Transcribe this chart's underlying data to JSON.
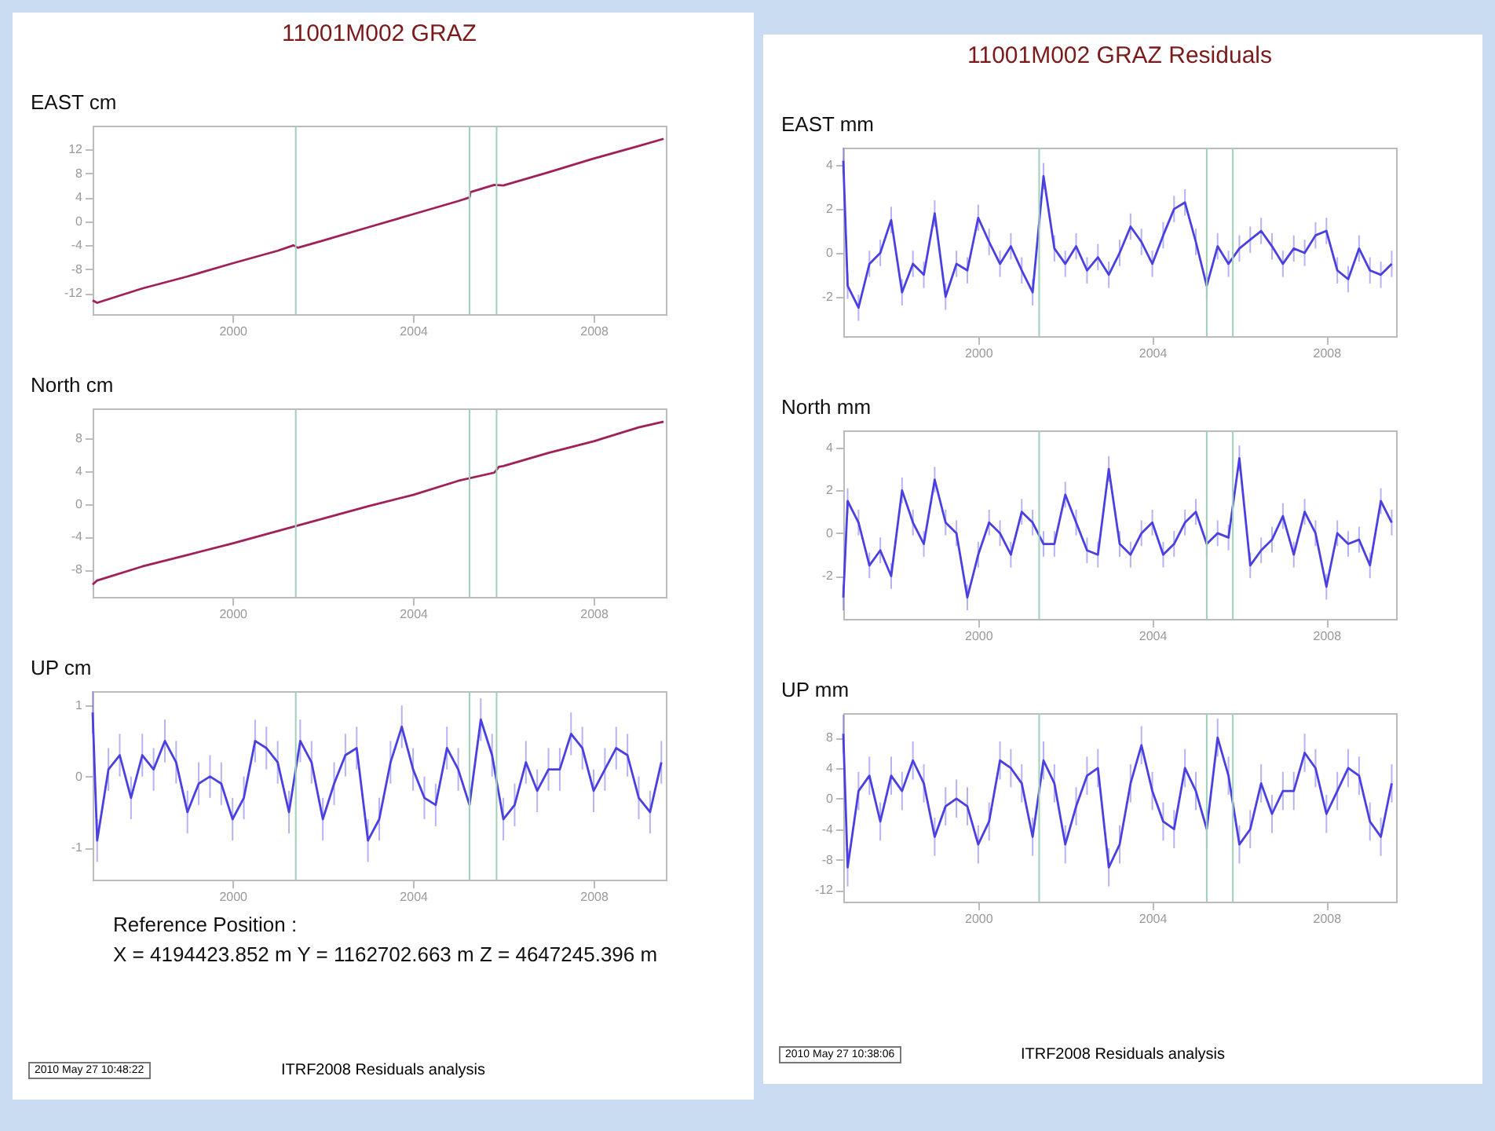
{
  "chart_data": [
    {
      "type": "line",
      "title": "11001M002 GRAZ",
      "ylabel": "EAST cm",
      "xlim": [
        1996.9,
        2009.6
      ],
      "xticks": [
        2000,
        2004,
        2008
      ],
      "ylim": [
        -15.5,
        16
      ],
      "yticks": [
        -12,
        -8,
        -4,
        0,
        4,
        8,
        12
      ],
      "grid": false,
      "x": [
        1996.9,
        1997.0,
        1998,
        1999,
        2000,
        2001,
        2001.35,
        2001.45,
        2002,
        2003,
        2004,
        2005,
        2005.25,
        2005.27,
        2005.8,
        2006,
        2007,
        2008,
        2009,
        2009.55
      ],
      "series": [
        {
          "color": "#a0205a",
          "values": [
            -13.2,
            -13.6,
            -11.2,
            -9.2,
            -7.0,
            -4.9,
            -4.0,
            -4.4,
            -3.2,
            -1.0,
            1.2,
            3.4,
            4.0,
            4.9,
            6.1,
            6.0,
            8.2,
            10.5,
            12.6,
            13.8
          ]
        }
      ],
      "ref_lines": [
        {
          "axis": "x",
          "value": 2001.4,
          "color": "#9fd0b8"
        },
        {
          "axis": "x",
          "value": 2005.25,
          "color": "#9fd0b8"
        },
        {
          "axis": "x",
          "value": 2005.85,
          "color": "#9fd0b8"
        }
      ]
    },
    {
      "type": "line",
      "ylabel": "North cm",
      "xlim": [
        1996.9,
        2009.6
      ],
      "xticks": [
        2000,
        2004,
        2008
      ],
      "ylim": [
        -11.3,
        11.6
      ],
      "yticks": [
        -8,
        -4,
        0,
        4,
        8
      ],
      "grid": false,
      "x": [
        1996.9,
        1997.0,
        1998,
        1999,
        2000,
        2001,
        2002,
        2003,
        2004,
        2005,
        2005.8,
        2005.9,
        2006,
        2007,
        2008,
        2009,
        2009.55
      ],
      "series": [
        {
          "color": "#a0205a",
          "values": [
            -9.8,
            -9.3,
            -7.6,
            -6.2,
            -4.8,
            -3.3,
            -1.8,
            -0.3,
            1.1,
            2.8,
            3.8,
            4.5,
            4.6,
            6.2,
            7.6,
            9.3,
            10.0
          ]
        }
      ],
      "ref_lines": [
        {
          "axis": "x",
          "value": 2001.4,
          "color": "#9fd0b8"
        },
        {
          "axis": "x",
          "value": 2005.25,
          "color": "#9fd0b8"
        },
        {
          "axis": "x",
          "value": 2005.85,
          "color": "#9fd0b8"
        }
      ]
    },
    {
      "type": "line",
      "ylabel": "UP cm",
      "xlim": [
        1996.9,
        2009.6
      ],
      "xticks": [
        2000,
        2004,
        2008
      ],
      "ylim": [
        -1.45,
        1.2
      ],
      "yticks": [
        -1,
        0,
        1
      ],
      "grid": false,
      "x": [
        1996.9,
        1997.0,
        1997.25,
        1997.5,
        1997.75,
        1998.0,
        1998.25,
        1998.5,
        1998.75,
        1999.0,
        1999.25,
        1999.5,
        1999.75,
        2000.0,
        2000.25,
        2000.5,
        2000.75,
        2001.0,
        2001.25,
        2001.5,
        2001.75,
        2002.0,
        2002.25,
        2002.5,
        2002.75,
        2003.0,
        2003.25,
        2003.5,
        2003.75,
        2004.0,
        2004.25,
        2004.5,
        2004.75,
        2005.0,
        2005.25,
        2005.5,
        2005.75,
        2006.0,
        2006.25,
        2006.5,
        2006.75,
        2007.0,
        2007.25,
        2007.5,
        2007.75,
        2008.0,
        2008.25,
        2008.5,
        2008.75,
        2009.0,
        2009.25,
        2009.5
      ],
      "series": [
        {
          "color": "#4a3fe0",
          "values": [
            0.9,
            -0.9,
            0.1,
            0.3,
            -0.3,
            0.3,
            0.1,
            0.5,
            0.2,
            -0.5,
            -0.1,
            0.0,
            -0.1,
            -0.6,
            -0.3,
            0.5,
            0.4,
            0.2,
            -0.5,
            0.5,
            0.2,
            -0.6,
            -0.1,
            0.3,
            0.4,
            -0.9,
            -0.6,
            0.2,
            0.7,
            0.1,
            -0.3,
            -0.4,
            0.4,
            0.1,
            -0.4,
            0.8,
            0.3,
            -0.6,
            -0.4,
            0.2,
            -0.2,
            0.1,
            0.1,
            0.6,
            0.4,
            -0.2,
            0.1,
            0.4,
            0.3,
            -0.3,
            -0.5,
            0.2
          ],
          "errors": [
            0.3,
            0.3,
            0.3,
            0.3,
            0.3,
            0.3,
            0.3,
            0.3,
            0.3,
            0.3,
            0.3,
            0.3,
            0.3,
            0.3,
            0.3,
            0.3,
            0.3,
            0.3,
            0.3,
            0.3,
            0.3,
            0.3,
            0.3,
            0.3,
            0.3,
            0.3,
            0.3,
            0.3,
            0.3,
            0.3,
            0.3,
            0.3,
            0.3,
            0.3,
            0.3,
            0.3,
            0.3,
            0.3,
            0.3,
            0.3,
            0.3,
            0.3,
            0.3,
            0.3,
            0.3,
            0.3,
            0.3,
            0.3,
            0.3,
            0.3,
            0.3,
            0.3
          ]
        }
      ],
      "ref_lines": [
        {
          "axis": "x",
          "value": 2001.4,
          "color": "#9fd0b8"
        },
        {
          "axis": "x",
          "value": 2005.25,
          "color": "#9fd0b8"
        },
        {
          "axis": "x",
          "value": 2005.85,
          "color": "#9fd0b8"
        }
      ],
      "annotations": [
        "Reference Position :",
        "X = 4194423.852 m  Y = 1162702.663 m  Z = 4647245.396 m",
        "2010 May 27 10:48:22",
        "ITRF2008 Residuals analysis"
      ]
    },
    {
      "type": "line",
      "title": "11001M002 GRAZ Residuals",
      "ylabel": "EAST mm",
      "xlim": [
        1996.9,
        2009.6
      ],
      "xticks": [
        2000,
        2004,
        2008
      ],
      "ylim": [
        -3.8,
        4.8
      ],
      "yticks": [
        -2,
        0,
        2,
        4
      ],
      "grid": false,
      "x": [
        1996.9,
        1997.0,
        1997.25,
        1997.5,
        1997.75,
        1998.0,
        1998.25,
        1998.5,
        1998.75,
        1999.0,
        1999.25,
        1999.5,
        1999.75,
        2000.0,
        2000.25,
        2000.5,
        2000.75,
        2001.0,
        2001.25,
        2001.5,
        2001.75,
        2002.0,
        2002.25,
        2002.5,
        2002.75,
        2003.0,
        2003.25,
        2003.5,
        2003.75,
        2004.0,
        2004.25,
        2004.5,
        2004.75,
        2005.0,
        2005.25,
        2005.5,
        2005.75,
        2006.0,
        2006.25,
        2006.5,
        2006.75,
        2007.0,
        2007.25,
        2007.5,
        2007.75,
        2008.0,
        2008.25,
        2008.5,
        2008.75,
        2009.0,
        2009.25,
        2009.5
      ],
      "series": [
        {
          "color": "#4a3fe0",
          "values": [
            4.2,
            -1.5,
            -2.5,
            -0.5,
            0.0,
            1.5,
            -1.8,
            -0.5,
            -1.0,
            1.8,
            -2.0,
            -0.5,
            -0.8,
            1.6,
            0.5,
            -0.5,
            0.3,
            -0.8,
            -1.8,
            3.5,
            0.2,
            -0.5,
            0.3,
            -0.8,
            -0.2,
            -1.0,
            0.0,
            1.2,
            0.5,
            -0.5,
            0.8,
            2.0,
            2.3,
            0.5,
            -1.5,
            0.3,
            -0.5,
            0.2,
            0.6,
            1.0,
            0.3,
            -0.5,
            0.2,
            0.0,
            0.8,
            1.0,
            -0.8,
            -1.2,
            0.2,
            -0.8,
            -1.0,
            -0.5
          ],
          "errors": [
            0.6,
            0.6,
            0.6,
            0.6,
            0.6,
            0.6,
            0.6,
            0.6,
            0.6,
            0.6,
            0.6,
            0.6,
            0.6,
            0.6,
            0.6,
            0.6,
            0.6,
            0.6,
            0.6,
            0.6,
            0.6,
            0.6,
            0.6,
            0.6,
            0.6,
            0.6,
            0.6,
            0.6,
            0.6,
            0.6,
            0.6,
            0.6,
            0.6,
            0.6,
            0.6,
            0.6,
            0.6,
            0.6,
            0.6,
            0.6,
            0.6,
            0.6,
            0.6,
            0.6,
            0.6,
            0.6,
            0.6,
            0.6,
            0.6,
            0.6,
            0.6,
            0.6
          ]
        }
      ],
      "ref_lines": [
        {
          "axis": "x",
          "value": 2001.4,
          "color": "#9fd0b8"
        },
        {
          "axis": "x",
          "value": 2005.25,
          "color": "#9fd0b8"
        },
        {
          "axis": "x",
          "value": 2005.85,
          "color": "#9fd0b8"
        }
      ]
    },
    {
      "type": "line",
      "ylabel": "North mm",
      "xlim": [
        1996.9,
        2009.6
      ],
      "xticks": [
        2000,
        2004,
        2008
      ],
      "ylim": [
        -4,
        4.8
      ],
      "yticks": [
        -2,
        0,
        2,
        4
      ],
      "grid": false,
      "x": [
        1996.9,
        1997.0,
        1997.25,
        1997.5,
        1997.75,
        1998.0,
        1998.25,
        1998.5,
        1998.75,
        1999.0,
        1999.25,
        1999.5,
        1999.75,
        2000.0,
        2000.25,
        2000.5,
        2000.75,
        2001.0,
        2001.25,
        2001.5,
        2001.75,
        2002.0,
        2002.25,
        2002.5,
        2002.75,
        2003.0,
        2003.25,
        2003.5,
        2003.75,
        2004.0,
        2004.25,
        2004.5,
        2004.75,
        2005.0,
        2005.25,
        2005.5,
        2005.75,
        2006.0,
        2006.25,
        2006.5,
        2006.75,
        2007.0,
        2007.25,
        2007.5,
        2007.75,
        2008.0,
        2008.25,
        2008.5,
        2008.75,
        2009.0,
        2009.25,
        2009.5
      ],
      "series": [
        {
          "color": "#4a3fe0",
          "values": [
            -3.0,
            1.5,
            0.5,
            -1.5,
            -0.8,
            -2.0,
            2.0,
            0.5,
            -0.5,
            2.5,
            0.5,
            0.0,
            -3.0,
            -1.0,
            0.5,
            0.0,
            -1.0,
            1.0,
            0.5,
            -0.5,
            -0.5,
            1.8,
            0.5,
            -0.8,
            -1.0,
            3.0,
            -0.5,
            -1.0,
            0.0,
            0.5,
            -1.0,
            -0.5,
            0.5,
            1.0,
            -0.5,
            0.0,
            -0.2,
            3.5,
            -1.5,
            -0.8,
            -0.3,
            0.8,
            -1.0,
            1.0,
            0.0,
            -2.5,
            0.0,
            -0.5,
            -0.3,
            -1.5,
            1.5,
            0.5
          ],
          "errors": [
            0.6,
            0.6,
            0.6,
            0.6,
            0.6,
            0.6,
            0.6,
            0.6,
            0.6,
            0.6,
            0.6,
            0.6,
            0.6,
            0.6,
            0.6,
            0.6,
            0.6,
            0.6,
            0.6,
            0.6,
            0.6,
            0.6,
            0.6,
            0.6,
            0.6,
            0.6,
            0.6,
            0.6,
            0.6,
            0.6,
            0.6,
            0.6,
            0.6,
            0.6,
            0.6,
            0.6,
            0.6,
            0.6,
            0.6,
            0.6,
            0.6,
            0.6,
            0.6,
            0.6,
            0.6,
            0.6,
            0.6,
            0.6,
            0.6,
            0.6,
            0.6,
            0.6
          ]
        }
      ],
      "ref_lines": [
        {
          "axis": "x",
          "value": 2001.4,
          "color": "#9fd0b8"
        },
        {
          "axis": "x",
          "value": 2005.25,
          "color": "#9fd0b8"
        },
        {
          "axis": "x",
          "value": 2005.85,
          "color": "#9fd0b8"
        }
      ]
    },
    {
      "type": "line",
      "ylabel": "UP mm",
      "xlim": [
        1996.9,
        2009.6
      ],
      "xticks": [
        2000,
        2004,
        2008
      ],
      "ylim": [
        -13.5,
        11.2
      ],
      "yticks": [
        -12,
        -8,
        -4,
        0,
        4,
        8
      ],
      "grid": false,
      "x": [
        1996.9,
        1997.0,
        1997.25,
        1997.5,
        1997.75,
        1998.0,
        1998.25,
        1998.5,
        1998.75,
        1999.0,
        1999.25,
        1999.5,
        1999.75,
        2000.0,
        2000.25,
        2000.5,
        2000.75,
        2001.0,
        2001.25,
        2001.5,
        2001.75,
        2002.0,
        2002.25,
        2002.5,
        2002.75,
        2003.0,
        2003.25,
        2003.5,
        2003.75,
        2004.0,
        2004.25,
        2004.5,
        2004.75,
        2005.0,
        2005.25,
        2005.5,
        2005.75,
        2006.0,
        2006.25,
        2006.5,
        2006.75,
        2007.0,
        2007.25,
        2007.5,
        2007.75,
        2008.0,
        2008.25,
        2008.5,
        2008.75,
        2009.0,
        2009.25,
        2009.5
      ],
      "series": [
        {
          "color": "#4a3fe0",
          "values": [
            8.5,
            -9,
            1,
            3,
            -3,
            3,
            1,
            5,
            2,
            -5,
            -1,
            0,
            -1,
            -6,
            -3,
            5,
            4,
            2,
            -5,
            5,
            2,
            -6,
            -1,
            3,
            4,
            -9,
            -6,
            2,
            7,
            1,
            -3,
            -4,
            4,
            1,
            -4,
            8,
            3,
            -6,
            -4,
            2,
            -2,
            1,
            1,
            6,
            4,
            -2,
            1,
            4,
            3,
            -3,
            -5,
            2
          ],
          "errors": [
            2.5,
            2.5,
            2.5,
            2.5,
            2.5,
            2.5,
            2.5,
            2.5,
            2.5,
            2.5,
            2.5,
            2.5,
            2.5,
            2.5,
            2.5,
            2.5,
            2.5,
            2.5,
            2.5,
            2.5,
            2.5,
            2.5,
            2.5,
            2.5,
            2.5,
            2.5,
            2.5,
            2.5,
            2.5,
            2.5,
            2.5,
            2.5,
            2.5,
            2.5,
            2.5,
            2.5,
            2.5,
            2.5,
            2.5,
            2.5,
            2.5,
            2.5,
            2.5,
            2.5,
            2.5,
            2.5,
            2.5,
            2.5,
            2.5,
            2.5,
            2.5,
            2.5
          ]
        }
      ],
      "ref_lines": [
        {
          "axis": "x",
          "value": 2001.4,
          "color": "#9fd0b8"
        },
        {
          "axis": "x",
          "value": 2005.25,
          "color": "#9fd0b8"
        },
        {
          "axis": "x",
          "value": 2005.85,
          "color": "#9fd0b8"
        }
      ],
      "annotations": [
        "2010 May 27 10:38:06",
        "ITRF2008 Residuals analysis"
      ]
    }
  ]
}
